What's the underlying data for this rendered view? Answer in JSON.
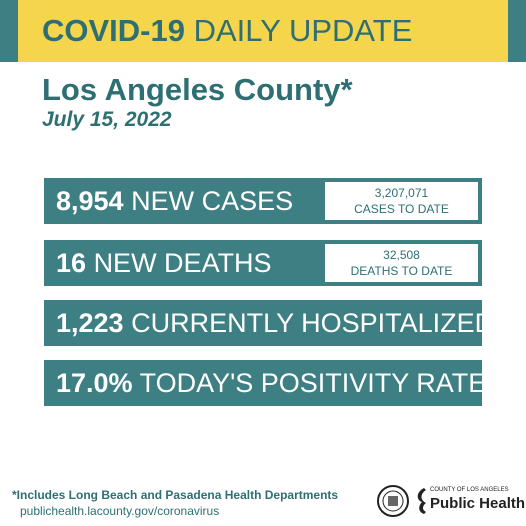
{
  "header": {
    "title_bold": "COVID-19",
    "title_rest": "DAILY UPDATE"
  },
  "region": "Los Angeles County*",
  "date": "July 15, 2022",
  "stats": [
    {
      "number": "8,954",
      "label": "NEW CASES",
      "total": "3,207,071",
      "total_label": "CASES TO DATE"
    },
    {
      "number": "16",
      "label": "NEW DEATHS",
      "total": "32,508",
      "total_label": "DEATHS TO DATE"
    },
    {
      "number": "1,223",
      "label": "CURRENTLY HOSPITALIZED"
    },
    {
      "number": "17.0%",
      "label": "TODAY'S POSITIVITY RATE"
    }
  ],
  "footer": {
    "note": "*Includes Long Beach and Pasadena Health Departments",
    "url": "publichealth.lacounty.gov/coronavirus",
    "logo_small": "COUNTY OF LOS ANGELES",
    "logo_big": "Public Health"
  }
}
